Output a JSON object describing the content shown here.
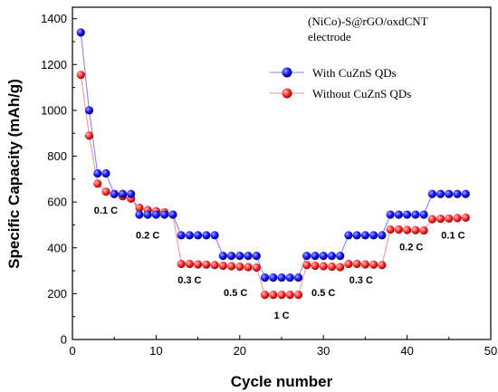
{
  "chart_data": {
    "type": "line",
    "title": "",
    "xlabel": "Cycle number",
    "ylabel": "Specific Capacity (mAh/g)",
    "xlim": [
      0,
      50
    ],
    "ylim": [
      0,
      1450
    ],
    "xticks": [
      0,
      10,
      20,
      30,
      40,
      50
    ],
    "yticks": [
      0,
      200,
      400,
      600,
      800,
      1000,
      1200,
      1400
    ],
    "grid": false,
    "legend_position": "top-right",
    "annotation_lines": [
      "(NiCo)-S@rGO/oxdCNT",
      "electrode"
    ],
    "rate_labels": [
      {
        "text": "0.1 C",
        "x": 4,
        "y": 550
      },
      {
        "text": "0.2 C",
        "x": 9,
        "y": 440
      },
      {
        "text": "0.3 C",
        "x": 14,
        "y": 245
      },
      {
        "text": "0.5 C",
        "x": 19.5,
        "y": 190
      },
      {
        "text": "1 C",
        "x": 25,
        "y": 90
      },
      {
        "text": "0.5 C",
        "x": 30,
        "y": 190
      },
      {
        "text": "0.3 C",
        "x": 34.5,
        "y": 245
      },
      {
        "text": "0.2 C",
        "x": 40.5,
        "y": 390
      },
      {
        "text": "0.1 C",
        "x": 45.5,
        "y": 440
      }
    ],
    "x": [
      1,
      2,
      3,
      4,
      5,
      6,
      7,
      8,
      9,
      10,
      11,
      12,
      13,
      14,
      15,
      16,
      17,
      18,
      19,
      20,
      21,
      22,
      23,
      24,
      25,
      26,
      27,
      28,
      29,
      30,
      31,
      32,
      33,
      34,
      35,
      36,
      37,
      38,
      39,
      40,
      41,
      42,
      43,
      44,
      45,
      46,
      47
    ],
    "series": [
      {
        "name": "With CuZnS QDs",
        "color": "#1a1aff",
        "values": [
          1340,
          1000,
          725,
          725,
          635,
          635,
          635,
          545,
          545,
          545,
          545,
          545,
          455,
          455,
          455,
          455,
          455,
          365,
          365,
          365,
          365,
          365,
          270,
          270,
          270,
          270,
          270,
          365,
          365,
          365,
          365,
          365,
          455,
          455,
          455,
          455,
          455,
          545,
          545,
          545,
          545,
          545,
          635,
          635,
          635,
          635,
          635
        ]
      },
      {
        "name": "Without CuZnS QDs",
        "color": "#ff3333",
        "values": [
          1155,
          890,
          680,
          645,
          635,
          625,
          615,
          575,
          565,
          560,
          555,
          545,
          330,
          330,
          328,
          327,
          325,
          322,
          320,
          318,
          316,
          314,
          195,
          195,
          195,
          195,
          195,
          325,
          322,
          320,
          318,
          316,
          330,
          330,
          328,
          327,
          325,
          480,
          480,
          478,
          477,
          476,
          525,
          527,
          528,
          530,
          532
        ]
      }
    ]
  }
}
